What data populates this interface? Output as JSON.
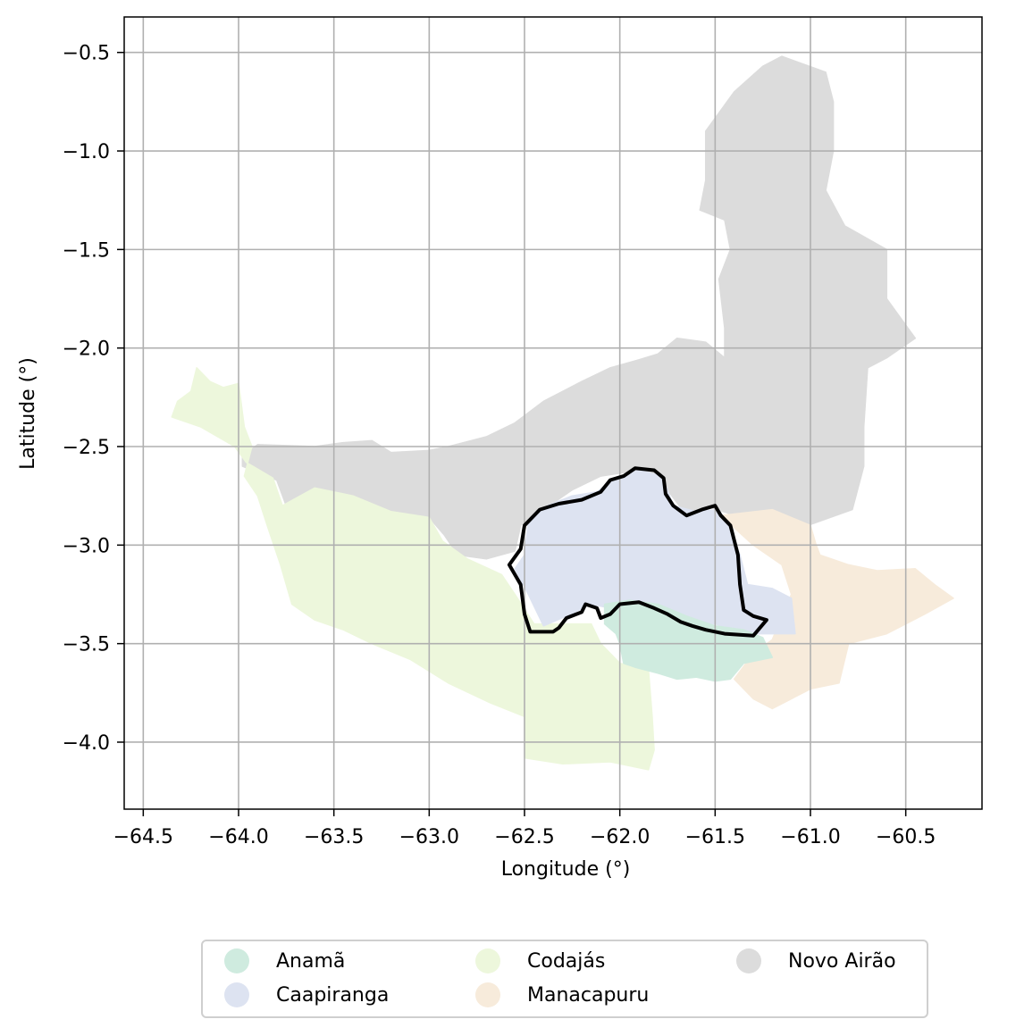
{
  "map": {
    "xlabel": "Longitude (°)",
    "ylabel": "Latitude (°)",
    "xlim": [
      -64.6,
      -60.1
    ],
    "ylim": [
      -4.34,
      -0.32
    ],
    "x_ticks": [
      -64.5,
      -64.0,
      -63.5,
      -63.0,
      -62.5,
      -62.0,
      -61.5,
      -61.0,
      -60.5
    ],
    "x_tick_labels": [
      "−64.5",
      "−64.0",
      "−63.5",
      "−63.0",
      "−62.5",
      "−62.0",
      "−61.5",
      "−61.0",
      "−60.5"
    ],
    "y_ticks": [
      -0.5,
      -1.0,
      -1.5,
      -2.0,
      -2.5,
      -3.0,
      -3.5,
      -4.0
    ],
    "y_tick_labels": [
      "−0.5",
      "−1.0",
      "−1.5",
      "−2.0",
      "−2.5",
      "−3.0",
      "−3.5",
      "−4.0"
    ],
    "grid": true,
    "highlighted_region": "Caapiranga",
    "regions": [
      {
        "name": "Novo Airão",
        "color": "#dcdcdc",
        "polygon": [
          [
            -63.98,
            -2.55
          ],
          [
            -63.9,
            -2.49
          ],
          [
            -63.6,
            -2.5
          ],
          [
            -63.45,
            -2.48
          ],
          [
            -63.3,
            -2.47
          ],
          [
            -63.2,
            -2.53
          ],
          [
            -63.0,
            -2.52
          ],
          [
            -62.9,
            -2.5
          ],
          [
            -62.7,
            -2.45
          ],
          [
            -62.55,
            -2.38
          ],
          [
            -62.4,
            -2.27
          ],
          [
            -62.2,
            -2.17
          ],
          [
            -62.05,
            -2.1
          ],
          [
            -61.9,
            -2.06
          ],
          [
            -61.8,
            -2.03
          ],
          [
            -61.7,
            -1.95
          ],
          [
            -61.55,
            -1.97
          ],
          [
            -61.45,
            -2.05
          ],
          [
            -61.45,
            -1.9
          ],
          [
            -61.48,
            -1.65
          ],
          [
            -61.42,
            -1.5
          ],
          [
            -61.45,
            -1.35
          ],
          [
            -61.58,
            -1.3
          ],
          [
            -61.55,
            -1.15
          ],
          [
            -61.55,
            -0.9
          ],
          [
            -61.4,
            -0.7
          ],
          [
            -61.25,
            -0.57
          ],
          [
            -61.15,
            -0.52
          ],
          [
            -60.92,
            -0.6
          ],
          [
            -60.88,
            -0.75
          ],
          [
            -60.88,
            -1.0
          ],
          [
            -60.92,
            -1.2
          ],
          [
            -60.82,
            -1.38
          ],
          [
            -60.6,
            -1.5
          ],
          [
            -60.6,
            -1.75
          ],
          [
            -60.45,
            -1.95
          ],
          [
            -60.6,
            -2.05
          ],
          [
            -60.7,
            -2.1
          ],
          [
            -60.72,
            -2.4
          ],
          [
            -60.72,
            -2.6
          ],
          [
            -60.78,
            -2.82
          ],
          [
            -61.1,
            -2.93
          ],
          [
            -61.3,
            -2.88
          ],
          [
            -61.52,
            -2.81
          ],
          [
            -61.65,
            -2.85
          ],
          [
            -61.75,
            -2.72
          ],
          [
            -61.9,
            -2.62
          ],
          [
            -62.1,
            -2.65
          ],
          [
            -62.25,
            -2.72
          ],
          [
            -62.4,
            -2.82
          ],
          [
            -62.52,
            -2.9
          ],
          [
            -62.55,
            -3.03
          ],
          [
            -62.7,
            -3.07
          ],
          [
            -62.85,
            -3.05
          ],
          [
            -62.92,
            -2.95
          ],
          [
            -63.0,
            -2.86
          ],
          [
            -63.2,
            -2.83
          ],
          [
            -63.4,
            -2.75
          ],
          [
            -63.6,
            -2.72
          ],
          [
            -63.75,
            -2.8
          ],
          [
            -63.8,
            -2.67
          ],
          [
            -63.98,
            -2.6
          ]
        ]
      },
      {
        "name": "Codajás",
        "color": "#edf7dc",
        "polygon": [
          [
            -64.35,
            -2.35
          ],
          [
            -64.32,
            -2.27
          ],
          [
            -64.25,
            -2.22
          ],
          [
            -64.22,
            -2.1
          ],
          [
            -64.15,
            -2.17
          ],
          [
            -64.08,
            -2.2
          ],
          [
            -64.0,
            -2.18
          ],
          [
            -63.97,
            -2.4
          ],
          [
            -63.93,
            -2.5
          ],
          [
            -63.97,
            -2.65
          ],
          [
            -63.9,
            -2.75
          ],
          [
            -63.85,
            -2.9
          ],
          [
            -63.78,
            -3.1
          ],
          [
            -63.72,
            -3.3
          ],
          [
            -63.6,
            -3.38
          ],
          [
            -63.45,
            -3.43
          ],
          [
            -63.3,
            -3.5
          ],
          [
            -63.1,
            -3.58
          ],
          [
            -62.9,
            -3.7
          ],
          [
            -62.68,
            -3.8
          ],
          [
            -62.5,
            -3.87
          ],
          [
            -62.5,
            -4.08
          ],
          [
            -62.3,
            -4.11
          ],
          [
            -62.05,
            -4.1
          ],
          [
            -61.85,
            -4.14
          ],
          [
            -61.82,
            -4.04
          ],
          [
            -61.83,
            -3.87
          ],
          [
            -61.85,
            -3.63
          ],
          [
            -62.0,
            -3.6
          ],
          [
            -62.1,
            -3.5
          ],
          [
            -62.15,
            -3.4
          ],
          [
            -62.3,
            -3.4
          ],
          [
            -62.45,
            -3.4
          ],
          [
            -62.55,
            -3.25
          ],
          [
            -62.62,
            -3.15
          ],
          [
            -62.8,
            -3.07
          ],
          [
            -62.93,
            -2.98
          ],
          [
            -63.0,
            -2.86
          ],
          [
            -63.2,
            -2.83
          ],
          [
            -63.4,
            -2.75
          ],
          [
            -63.6,
            -2.71
          ],
          [
            -63.77,
            -2.8
          ],
          [
            -63.82,
            -2.66
          ],
          [
            -63.96,
            -2.58
          ],
          [
            -64.02,
            -2.5
          ],
          [
            -64.2,
            -2.4
          ]
        ]
      },
      {
        "name": "Manacapuru",
        "color": "#f7ebdb",
        "polygon": [
          [
            -61.47,
            -2.85
          ],
          [
            -61.2,
            -2.82
          ],
          [
            -61.0,
            -2.9
          ],
          [
            -60.97,
            -3.0
          ],
          [
            -60.95,
            -3.05
          ],
          [
            -60.8,
            -3.1
          ],
          [
            -60.65,
            -3.13
          ],
          [
            -60.45,
            -3.12
          ],
          [
            -60.35,
            -3.2
          ],
          [
            -60.25,
            -3.27
          ],
          [
            -60.4,
            -3.35
          ],
          [
            -60.6,
            -3.45
          ],
          [
            -60.8,
            -3.5
          ],
          [
            -60.85,
            -3.7
          ],
          [
            -61.0,
            -3.73
          ],
          [
            -61.1,
            -3.78
          ],
          [
            -61.2,
            -3.83
          ],
          [
            -61.3,
            -3.78
          ],
          [
            -61.4,
            -3.68
          ],
          [
            -61.3,
            -3.55
          ],
          [
            -61.2,
            -3.48
          ],
          [
            -61.1,
            -3.25
          ],
          [
            -61.15,
            -3.1
          ],
          [
            -61.3,
            -3.0
          ]
        ]
      },
      {
        "name": "Caapiranga",
        "color": "#dde3f1",
        "polygon": [
          [
            -62.5,
            -3.05
          ],
          [
            -62.48,
            -2.88
          ],
          [
            -62.38,
            -2.8
          ],
          [
            -62.25,
            -2.75
          ],
          [
            -62.12,
            -2.73
          ],
          [
            -62.03,
            -2.66
          ],
          [
            -61.9,
            -2.62
          ],
          [
            -61.78,
            -2.65
          ],
          [
            -61.75,
            -2.72
          ],
          [
            -61.72,
            -2.8
          ],
          [
            -61.6,
            -2.83
          ],
          [
            -61.48,
            -2.82
          ],
          [
            -61.42,
            -2.92
          ],
          [
            -61.37,
            -3.05
          ],
          [
            -61.33,
            -3.2
          ],
          [
            -61.2,
            -3.22
          ],
          [
            -61.1,
            -3.27
          ],
          [
            -61.08,
            -3.45
          ],
          [
            -61.3,
            -3.45
          ],
          [
            -61.38,
            -3.44
          ],
          [
            -61.5,
            -3.4
          ],
          [
            -61.65,
            -3.4
          ],
          [
            -61.8,
            -3.35
          ],
          [
            -62.0,
            -3.33
          ],
          [
            -62.15,
            -3.3
          ],
          [
            -62.28,
            -3.36
          ],
          [
            -62.4,
            -3.41
          ],
          [
            -62.48,
            -3.25
          ],
          [
            -62.55,
            -3.12
          ]
        ]
      },
      {
        "name": "Anamã",
        "color": "#cfebdf",
        "polygon": [
          [
            -62.08,
            -3.3
          ],
          [
            -61.95,
            -3.28
          ],
          [
            -61.8,
            -3.3
          ],
          [
            -61.65,
            -3.36
          ],
          [
            -61.5,
            -3.41
          ],
          [
            -61.35,
            -3.43
          ],
          [
            -61.25,
            -3.47
          ],
          [
            -61.2,
            -3.57
          ],
          [
            -61.35,
            -3.6
          ],
          [
            -61.42,
            -3.68
          ],
          [
            -61.5,
            -3.69
          ],
          [
            -61.6,
            -3.67
          ],
          [
            -61.7,
            -3.68
          ],
          [
            -61.8,
            -3.65
          ],
          [
            -61.92,
            -3.62
          ],
          [
            -61.98,
            -3.6
          ],
          [
            -62.0,
            -3.5
          ],
          [
            -62.02,
            -3.45
          ],
          [
            -62.08,
            -3.4
          ]
        ]
      }
    ],
    "outline": [
      [
        -62.58,
        -3.1
      ],
      [
        -62.52,
        -3.02
      ],
      [
        -62.5,
        -2.9
      ],
      [
        -62.42,
        -2.82
      ],
      [
        -62.32,
        -2.79
      ],
      [
        -62.2,
        -2.77
      ],
      [
        -62.1,
        -2.73
      ],
      [
        -62.05,
        -2.67
      ],
      [
        -61.98,
        -2.65
      ],
      [
        -61.92,
        -2.61
      ],
      [
        -61.82,
        -2.62
      ],
      [
        -61.77,
        -2.66
      ],
      [
        -61.76,
        -2.74
      ],
      [
        -61.72,
        -2.8
      ],
      [
        -61.65,
        -2.85
      ],
      [
        -61.57,
        -2.82
      ],
      [
        -61.5,
        -2.8
      ],
      [
        -61.47,
        -2.85
      ],
      [
        -61.42,
        -2.9
      ],
      [
        -61.38,
        -3.05
      ],
      [
        -61.37,
        -3.2
      ],
      [
        -61.35,
        -3.33
      ],
      [
        -61.3,
        -3.36
      ],
      [
        -61.23,
        -3.38
      ],
      [
        -61.3,
        -3.46
      ],
      [
        -61.45,
        -3.45
      ],
      [
        -61.55,
        -3.43
      ],
      [
        -61.62,
        -3.41
      ],
      [
        -61.68,
        -3.39
      ],
      [
        -61.75,
        -3.35
      ],
      [
        -61.82,
        -3.32
      ],
      [
        -61.9,
        -3.29
      ],
      [
        -62.0,
        -3.3
      ],
      [
        -62.05,
        -3.35
      ],
      [
        -62.1,
        -3.37
      ],
      [
        -62.12,
        -3.32
      ],
      [
        -62.18,
        -3.3
      ],
      [
        -62.2,
        -3.34
      ],
      [
        -62.28,
        -3.37
      ],
      [
        -62.32,
        -3.42
      ],
      [
        -62.35,
        -3.44
      ],
      [
        -62.47,
        -3.44
      ],
      [
        -62.5,
        -3.35
      ],
      [
        -62.52,
        -3.2
      ]
    ]
  },
  "legend": {
    "items": [
      {
        "label": "Anamã",
        "color": "#cfebdf"
      },
      {
        "label": "Caapiranga",
        "color": "#dde3f1"
      },
      {
        "label": "Codajás",
        "color": "#edf7dc"
      },
      {
        "label": "Manacapuru",
        "color": "#f7ebdb"
      },
      {
        "label": "Novo Airão",
        "color": "#dcdcdc"
      }
    ]
  }
}
